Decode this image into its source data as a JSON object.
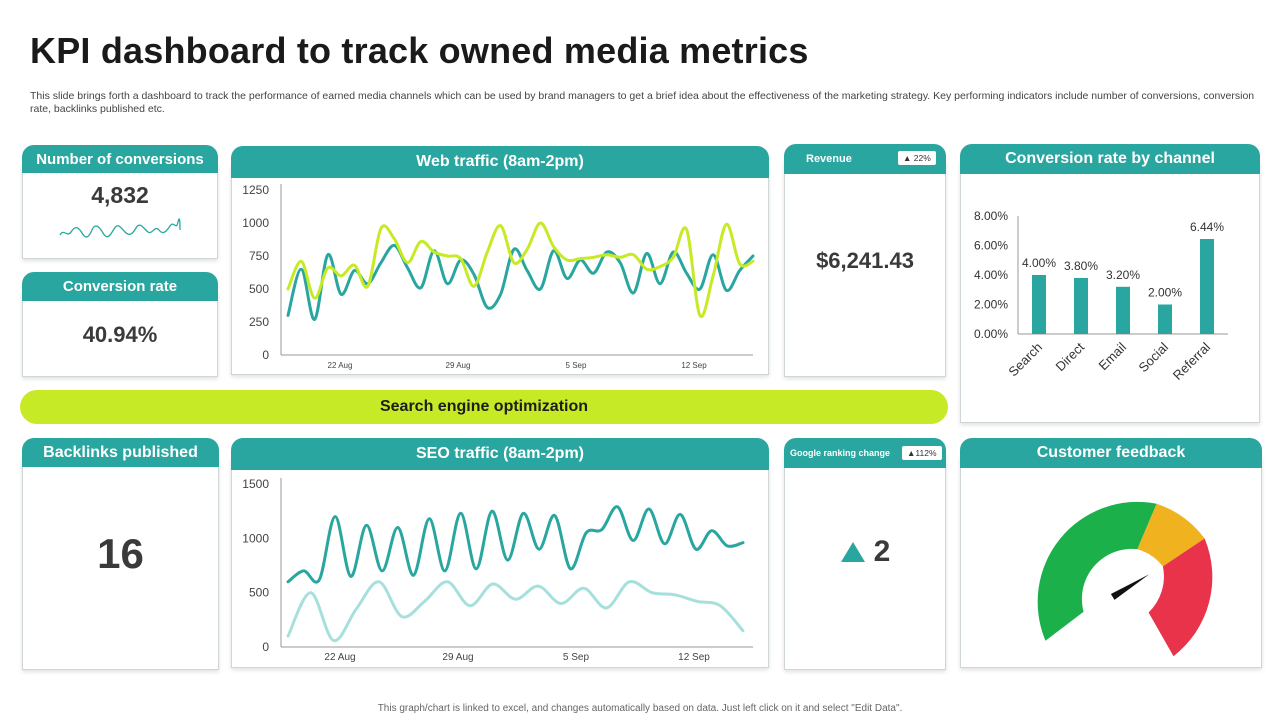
{
  "title": "KPI dashboard to track owned media metrics",
  "description": "This slide brings forth a dashboard to track the performance of earned media channels which can be used by brand managers to get a brief idea about the effectiveness of the marketing strategy. Key performing indicators include number of conversions, conversion rate, backlinks published etc.",
  "colors": {
    "teal": "#2aa6a0",
    "lime": "#c6ea26",
    "green": "#1cb04b",
    "amber": "#f0b21f",
    "red": "#e8334a"
  },
  "conversions": {
    "title": "Number of conversions",
    "value": "4,832"
  },
  "conversion_rate": {
    "title": "Conversion rate",
    "value": "40.94%"
  },
  "web_traffic": {
    "title": "Web traffic (8am-2pm)",
    "chart_data": {
      "type": "line",
      "x_ticks": [
        "22 Aug",
        "29 Aug",
        "5 Sep",
        "12 Sep"
      ],
      "ylim": [
        0,
        1250
      ],
      "y_ticks": [
        "0",
        "250",
        "500",
        "750",
        "1000",
        "1250"
      ],
      "series": [
        {
          "color": "#2aa6a0",
          "values": [
            300,
            650,
            270,
            760,
            460,
            640,
            540,
            700,
            830,
            660,
            510,
            790,
            540,
            720,
            610,
            360,
            460,
            800,
            640,
            500,
            790,
            580,
            720,
            620,
            780,
            700,
            470,
            770,
            540,
            780,
            620,
            500,
            760,
            490,
            640,
            750
          ]
        },
        {
          "color": "#c6ea26",
          "values": [
            500,
            710,
            430,
            660,
            600,
            680,
            520,
            960,
            880,
            700,
            860,
            780,
            750,
            730,
            520,
            780,
            980,
            700,
            800,
            1000,
            820,
            720,
            730,
            740,
            760,
            740,
            760,
            650,
            670,
            740,
            950,
            300,
            600,
            990,
            690,
            710
          ]
        }
      ]
    }
  },
  "revenue": {
    "title": "Revenue",
    "badge": "▲ 22%",
    "value": "$6,241.43"
  },
  "conversion_by_channel": {
    "title": "Conversion rate by channel",
    "chart_data": {
      "type": "bar",
      "categories": [
        "Search",
        "Direct",
        "Email",
        "Social",
        "Referral"
      ],
      "values": [
        4.0,
        3.8,
        3.2,
        2.0,
        6.44
      ],
      "data_labels": [
        "4.00%",
        "3.80%",
        "3.20%",
        "2.00%",
        "6.44%"
      ],
      "ylim": [
        0,
        8
      ],
      "y_ticks": [
        "0.00%",
        "2.00%",
        "4.00%",
        "6.00%",
        "8.00%"
      ]
    }
  },
  "seo_band": "Search engine optimization",
  "backlinks": {
    "title": "Backlinks published",
    "value": "16"
  },
  "seo_traffic": {
    "title": "SEO traffic (8am-2pm)",
    "chart_data": {
      "type": "line",
      "x_ticks": [
        "22 Aug",
        "29 Aug",
        "5 Sep",
        "12 Sep"
      ],
      "ylim": [
        0,
        1500
      ],
      "y_ticks": [
        "0",
        "500",
        "1000",
        "1500"
      ],
      "series": [
        {
          "color": "#2aa6a0",
          "values": [
            600,
            700,
            620,
            1200,
            650,
            1120,
            700,
            1100,
            660,
            1180,
            700,
            1230,
            720,
            1250,
            800,
            1230,
            900,
            1210,
            720,
            1050,
            1080,
            1290,
            980,
            1270,
            950,
            1220,
            900,
            1070,
            930,
            960
          ]
        },
        {
          "color": "#a6e0dc",
          "values": [
            100,
            500,
            60,
            350,
            600,
            280,
            420,
            600,
            380,
            580,
            440,
            560,
            400,
            540,
            360,
            600,
            500,
            480,
            420,
            380,
            150
          ]
        }
      ]
    }
  },
  "ranking": {
    "title": "Google ranking  change",
    "badge": "▲112%",
    "icon": "triangle-up-icon",
    "value": "2"
  },
  "feedback": {
    "title": "Customer feedback",
    "gauge_value": 0.66
  },
  "footer": "This graph/chart is linked to excel, and changes automatically based on data. Just left click on it and select \"Edit Data\"."
}
